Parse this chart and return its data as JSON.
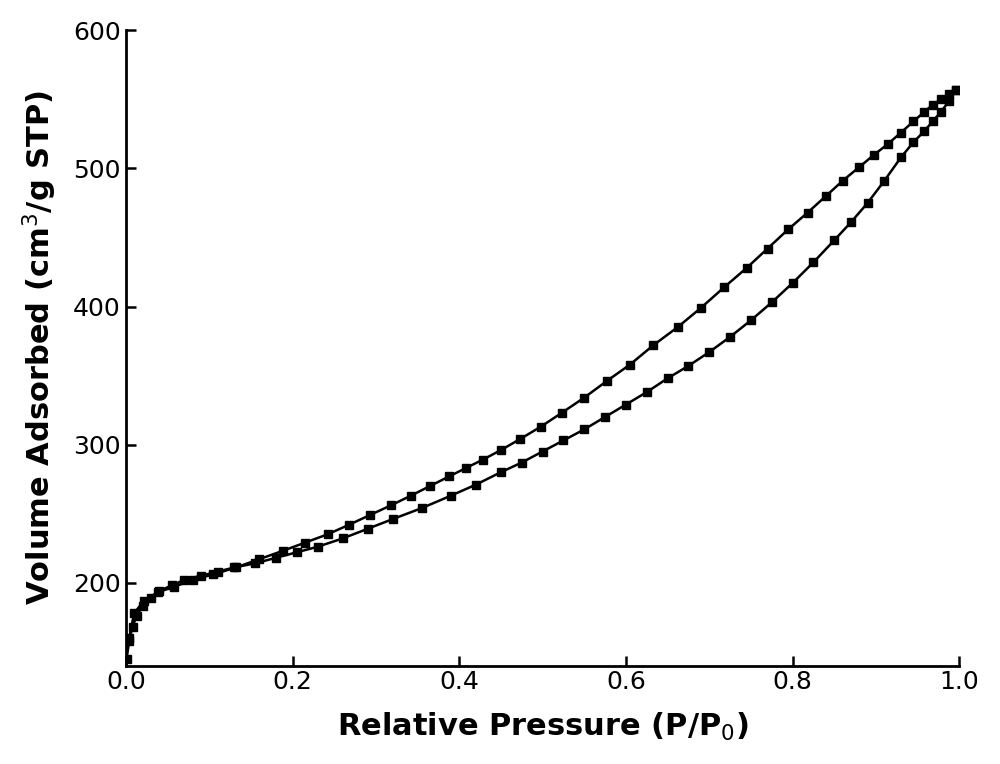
{
  "adsorption_x": [
    0.001,
    0.004,
    0.008,
    0.013,
    0.02,
    0.03,
    0.04,
    0.055,
    0.07,
    0.09,
    0.11,
    0.13,
    0.155,
    0.18,
    0.205,
    0.23,
    0.26,
    0.29,
    0.32,
    0.355,
    0.39,
    0.42,
    0.45,
    0.475,
    0.5,
    0.525,
    0.55,
    0.575,
    0.6,
    0.625,
    0.65,
    0.675,
    0.7,
    0.725,
    0.75,
    0.775,
    0.8,
    0.825,
    0.85,
    0.87,
    0.89,
    0.91,
    0.93,
    0.945,
    0.958,
    0.968,
    0.978,
    0.988,
    0.996
  ],
  "adsorption_y": [
    145,
    158,
    168,
    176,
    183,
    189,
    194,
    198,
    202,
    205,
    208,
    211,
    214,
    218,
    222,
    226,
    232,
    239,
    246,
    254,
    263,
    271,
    280,
    287,
    295,
    303,
    311,
    320,
    329,
    338,
    348,
    357,
    367,
    378,
    390,
    403,
    417,
    432,
    448,
    461,
    475,
    491,
    508,
    519,
    527,
    534,
    541,
    549,
    557
  ],
  "desorption_x": [
    0.996,
    0.988,
    0.978,
    0.968,
    0.958,
    0.945,
    0.93,
    0.915,
    0.898,
    0.88,
    0.86,
    0.84,
    0.818,
    0.795,
    0.77,
    0.745,
    0.718,
    0.69,
    0.662,
    0.633,
    0.605,
    0.577,
    0.55,
    0.523,
    0.498,
    0.473,
    0.45,
    0.428,
    0.408,
    0.388,
    0.365,
    0.342,
    0.318,
    0.293,
    0.268,
    0.242,
    0.215,
    0.188,
    0.16,
    0.132,
    0.105,
    0.08,
    0.058,
    0.038,
    0.022,
    0.01,
    0.004
  ],
  "desorption_y": [
    557,
    554,
    550,
    546,
    541,
    534,
    526,
    518,
    510,
    501,
    491,
    480,
    468,
    456,
    442,
    428,
    414,
    399,
    385,
    372,
    358,
    346,
    334,
    323,
    313,
    304,
    296,
    289,
    283,
    277,
    270,
    263,
    256,
    249,
    242,
    235,
    229,
    223,
    217,
    211,
    206,
    202,
    197,
    193,
    187,
    178,
    160
  ],
  "xlabel": "Relative Pressure (P/P$_0$)",
  "ylabel": "Volume Adsorbed (cm$^3$/g STP)",
  "xlim": [
    0.0,
    1.0
  ],
  "ylim": [
    140,
    600
  ],
  "yticks": [
    200,
    300,
    400,
    500,
    600
  ],
  "xticks": [
    0.0,
    0.2,
    0.4,
    0.6,
    0.8,
    1.0
  ],
  "line_color": "#000000",
  "marker": "s",
  "markersize": 6,
  "linewidth": 1.8,
  "xlabel_fontsize": 22,
  "ylabel_fontsize": 22,
  "tick_fontsize": 18,
  "background_color": "#ffffff"
}
